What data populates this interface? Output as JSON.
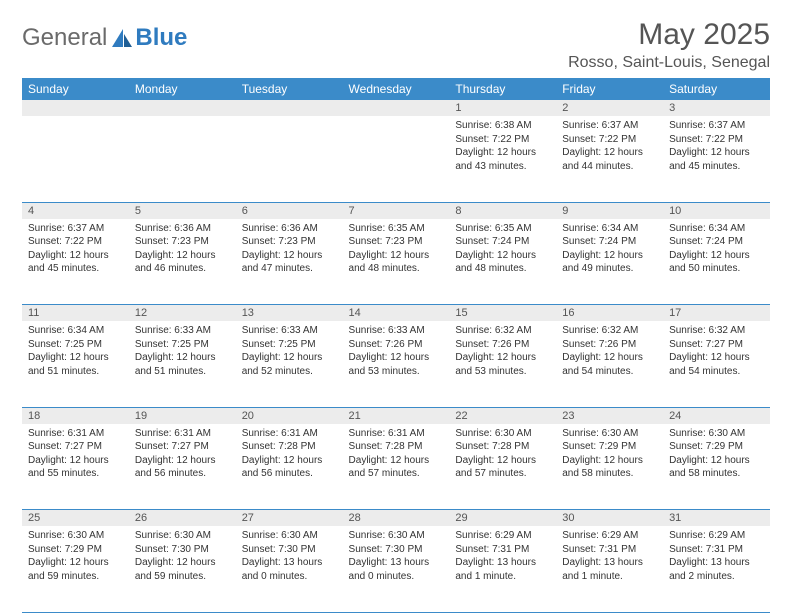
{
  "logo": {
    "part1": "General",
    "part2": "Blue"
  },
  "title": "May 2025",
  "location": "Rosso, Saint-Louis, Senegal",
  "colors": {
    "header_bg": "#3b8bc9",
    "header_text": "#ffffff",
    "daynum_bg": "#ececec",
    "rule": "#3b8bc9",
    "text": "#333333"
  },
  "day_headers": [
    "Sunday",
    "Monday",
    "Tuesday",
    "Wednesday",
    "Thursday",
    "Friday",
    "Saturday"
  ],
  "weeks": [
    [
      {
        "n": "",
        "sr": "",
        "ss": "",
        "dl": ""
      },
      {
        "n": "",
        "sr": "",
        "ss": "",
        "dl": ""
      },
      {
        "n": "",
        "sr": "",
        "ss": "",
        "dl": ""
      },
      {
        "n": "",
        "sr": "",
        "ss": "",
        "dl": ""
      },
      {
        "n": "1",
        "sr": "6:38 AM",
        "ss": "7:22 PM",
        "dl": "12 hours and 43 minutes."
      },
      {
        "n": "2",
        "sr": "6:37 AM",
        "ss": "7:22 PM",
        "dl": "12 hours and 44 minutes."
      },
      {
        "n": "3",
        "sr": "6:37 AM",
        "ss": "7:22 PM",
        "dl": "12 hours and 45 minutes."
      }
    ],
    [
      {
        "n": "4",
        "sr": "6:37 AM",
        "ss": "7:22 PM",
        "dl": "12 hours and 45 minutes."
      },
      {
        "n": "5",
        "sr": "6:36 AM",
        "ss": "7:23 PM",
        "dl": "12 hours and 46 minutes."
      },
      {
        "n": "6",
        "sr": "6:36 AM",
        "ss": "7:23 PM",
        "dl": "12 hours and 47 minutes."
      },
      {
        "n": "7",
        "sr": "6:35 AM",
        "ss": "7:23 PM",
        "dl": "12 hours and 48 minutes."
      },
      {
        "n": "8",
        "sr": "6:35 AM",
        "ss": "7:24 PM",
        "dl": "12 hours and 48 minutes."
      },
      {
        "n": "9",
        "sr": "6:34 AM",
        "ss": "7:24 PM",
        "dl": "12 hours and 49 minutes."
      },
      {
        "n": "10",
        "sr": "6:34 AM",
        "ss": "7:24 PM",
        "dl": "12 hours and 50 minutes."
      }
    ],
    [
      {
        "n": "11",
        "sr": "6:34 AM",
        "ss": "7:25 PM",
        "dl": "12 hours and 51 minutes."
      },
      {
        "n": "12",
        "sr": "6:33 AM",
        "ss": "7:25 PM",
        "dl": "12 hours and 51 minutes."
      },
      {
        "n": "13",
        "sr": "6:33 AM",
        "ss": "7:25 PM",
        "dl": "12 hours and 52 minutes."
      },
      {
        "n": "14",
        "sr": "6:33 AM",
        "ss": "7:26 PM",
        "dl": "12 hours and 53 minutes."
      },
      {
        "n": "15",
        "sr": "6:32 AM",
        "ss": "7:26 PM",
        "dl": "12 hours and 53 minutes."
      },
      {
        "n": "16",
        "sr": "6:32 AM",
        "ss": "7:26 PM",
        "dl": "12 hours and 54 minutes."
      },
      {
        "n": "17",
        "sr": "6:32 AM",
        "ss": "7:27 PM",
        "dl": "12 hours and 54 minutes."
      }
    ],
    [
      {
        "n": "18",
        "sr": "6:31 AM",
        "ss": "7:27 PM",
        "dl": "12 hours and 55 minutes."
      },
      {
        "n": "19",
        "sr": "6:31 AM",
        "ss": "7:27 PM",
        "dl": "12 hours and 56 minutes."
      },
      {
        "n": "20",
        "sr": "6:31 AM",
        "ss": "7:28 PM",
        "dl": "12 hours and 56 minutes."
      },
      {
        "n": "21",
        "sr": "6:31 AM",
        "ss": "7:28 PM",
        "dl": "12 hours and 57 minutes."
      },
      {
        "n": "22",
        "sr": "6:30 AM",
        "ss": "7:28 PM",
        "dl": "12 hours and 57 minutes."
      },
      {
        "n": "23",
        "sr": "6:30 AM",
        "ss": "7:29 PM",
        "dl": "12 hours and 58 minutes."
      },
      {
        "n": "24",
        "sr": "6:30 AM",
        "ss": "7:29 PM",
        "dl": "12 hours and 58 minutes."
      }
    ],
    [
      {
        "n": "25",
        "sr": "6:30 AM",
        "ss": "7:29 PM",
        "dl": "12 hours and 59 minutes."
      },
      {
        "n": "26",
        "sr": "6:30 AM",
        "ss": "7:30 PM",
        "dl": "12 hours and 59 minutes."
      },
      {
        "n": "27",
        "sr": "6:30 AM",
        "ss": "7:30 PM",
        "dl": "13 hours and 0 minutes."
      },
      {
        "n": "28",
        "sr": "6:30 AM",
        "ss": "7:30 PM",
        "dl": "13 hours and 0 minutes."
      },
      {
        "n": "29",
        "sr": "6:29 AM",
        "ss": "7:31 PM",
        "dl": "13 hours and 1 minute."
      },
      {
        "n": "30",
        "sr": "6:29 AM",
        "ss": "7:31 PM",
        "dl": "13 hours and 1 minute."
      },
      {
        "n": "31",
        "sr": "6:29 AM",
        "ss": "7:31 PM",
        "dl": "13 hours and 2 minutes."
      }
    ]
  ],
  "labels": {
    "sunrise": "Sunrise: ",
    "sunset": "Sunset: ",
    "daylight": "Daylight: "
  }
}
